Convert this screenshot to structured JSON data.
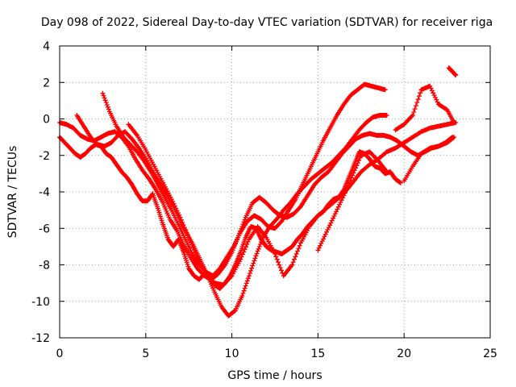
{
  "chart_data": {
    "type": "scatter",
    "title": "Day 098 of 2022, Sidereal Day-to-day VTEC variation (SDTVAR) for receiver riga",
    "xlabel": "GPS time / hours",
    "ylabel": "SDTVAR / TECUs",
    "xlim": [
      0,
      25
    ],
    "ylim": [
      -12,
      4
    ],
    "xticks": [
      0,
      5,
      10,
      15,
      20,
      25
    ],
    "yticks": [
      4,
      2,
      0,
      -2,
      -4,
      -6,
      -8,
      -10,
      -12
    ],
    "grid": true,
    "marker": "+",
    "color": "#ff0000",
    "series": [
      {
        "x": [
          0,
          0.3,
          0.6,
          0.9,
          1.2,
          1.5,
          1.8,
          2.1,
          2.4,
          2.7,
          3.0,
          3.3,
          3.6,
          3.9,
          4.2,
          4.5,
          4.8,
          5.1,
          5.4,
          5.7,
          6.0,
          6.3,
          6.6,
          6.9,
          7.2,
          7.5,
          7.8,
          8.1,
          8.4,
          8.7,
          9.0,
          9.3,
          9.6,
          9.9,
          10.2,
          10.5,
          10.8,
          11.1,
          11.4,
          11.7,
          12.0,
          12.3,
          12.6,
          12.9,
          13.2,
          13.5,
          13.8,
          14.1,
          14.4,
          14.7,
          15.0,
          15.3,
          15.6,
          15.9,
          16.2,
          16.5,
          16.8,
          17.1,
          17.4,
          17.7,
          18.0,
          18.3,
          18.6,
          18.9,
          19.2,
          19.5,
          19.8
        ],
        "y": [
          -1.0,
          -1.3,
          -1.6,
          -1.9,
          -2.1,
          -1.9,
          -1.6,
          -1.4,
          -1.5,
          -1.9,
          -2.1,
          -2.5,
          -2.9,
          -3.2,
          -3.6,
          -4.1,
          -4.5,
          -4.5,
          -4.1,
          -4.9,
          -5.8,
          -6.6,
          -7.0,
          -6.6,
          -7.3,
          -8.2,
          -8.6,
          -8.8,
          -8.5,
          -8.7,
          -9.1,
          -9.3,
          -9.0,
          -8.6,
          -8.0,
          -7.3,
          -6.5,
          -5.9,
          -6.0,
          -6.6,
          -7.0,
          -7.2,
          -7.3,
          -7.4,
          -7.2,
          -7.0,
          -6.6,
          -6.3,
          -5.9,
          -5.6,
          -5.3,
          -5.1,
          -4.7,
          -4.4,
          -4.3,
          -3.9,
          -3.2,
          -2.5,
          -1.8,
          -1.9,
          -2.2,
          -2.6,
          -2.7,
          -3.0,
          -2.9,
          -3.3,
          -3.5
        ]
      },
      {
        "x": [
          0,
          0.4,
          0.8,
          1.2,
          1.6,
          2.0,
          2.4,
          2.8,
          3.2,
          3.6,
          4.0,
          4.4,
          4.8,
          5.2,
          5.6,
          6.0,
          6.4,
          6.8,
          7.2,
          7.6,
          8.0,
          8.4,
          8.8,
          9.2,
          9.6,
          10.0,
          10.4,
          10.8,
          11.2,
          11.6,
          12.0,
          12.4,
          12.8,
          13.2,
          13.6,
          14.0,
          14.4,
          14.8,
          15.2,
          15.6,
          16.0,
          16.4,
          16.8,
          17.2,
          17.6,
          18.0,
          18.4,
          18.8,
          19.2,
          19.6,
          20.0,
          20.4,
          20.8,
          21.2,
          21.6,
          22.0,
          22.4,
          22.8
        ],
        "y": [
          -0.2,
          -0.3,
          -0.5,
          -0.9,
          -1.1,
          -1.2,
          -1.0,
          -0.8,
          -0.7,
          -1.0,
          -1.5,
          -2.2,
          -2.8,
          -3.3,
          -3.9,
          -4.6,
          -5.5,
          -6.1,
          -6.9,
          -7.6,
          -8.2,
          -8.6,
          -8.8,
          -8.5,
          -8.0,
          -7.3,
          -6.4,
          -5.4,
          -4.6,
          -4.3,
          -4.6,
          -5.0,
          -5.3,
          -5.4,
          -5.2,
          -4.8,
          -4.2,
          -3.6,
          -3.2,
          -2.9,
          -2.4,
          -1.9,
          -1.5,
          -1.1,
          -0.9,
          -0.8,
          -0.9,
          -0.9,
          -1.0,
          -1.2,
          -1.5,
          -1.8,
          -2.0,
          -1.8,
          -1.6,
          -1.5,
          -1.3,
          -1.0
        ]
      },
      {
        "x": [
          1.0,
          1.4,
          1.8,
          2.2,
          2.6,
          3.0,
          3.4,
          3.8,
          4.2,
          4.6,
          5.0,
          5.4,
          5.8,
          6.2,
          6.6,
          7.0,
          7.4,
          7.8,
          8.2,
          8.6,
          9.0,
          9.4,
          9.8,
          10.2,
          10.6,
          11.0,
          11.4,
          11.8,
          12.2,
          12.6,
          13.0,
          13.4,
          13.8,
          14.2,
          14.6,
          15.0,
          15.4,
          15.8,
          16.2,
          16.6,
          17.0,
          17.4,
          17.8,
          18.2,
          18.6,
          19.0
        ],
        "y": [
          0.2,
          -0.4,
          -1.0,
          -1.4,
          -1.5,
          -1.3,
          -0.9,
          -0.7,
          -1.1,
          -1.6,
          -2.2,
          -2.9,
          -3.5,
          -4.1,
          -4.8,
          -5.6,
          -6.3,
          -7.0,
          -7.8,
          -8.6,
          -9.5,
          -10.3,
          -10.8,
          -10.5,
          -9.7,
          -8.6,
          -7.5,
          -6.5,
          -5.9,
          -5.5,
          -5.0,
          -4.6,
          -4.1,
          -3.7,
          -3.3,
          -3.0,
          -2.7,
          -2.4,
          -2.0,
          -1.6,
          -1.1,
          -0.6,
          -0.2,
          0.1,
          0.2,
          0.2
        ]
      },
      {
        "x": [
          2.5,
          2.9,
          3.3,
          3.7,
          4.1,
          4.5,
          4.9,
          5.3,
          5.7,
          6.1,
          6.5,
          6.9,
          7.3,
          7.7,
          8.1,
          8.5,
          8.9,
          9.3,
          9.7,
          10.1,
          10.5,
          10.9,
          11.3,
          11.7,
          12.1,
          12.5,
          12.9,
          13.3,
          13.7,
          14.1,
          14.5,
          14.9,
          15.3,
          15.7,
          16.1,
          16.5,
          16.9,
          17.3,
          17.7,
          18.1,
          18.5,
          18.9
        ],
        "y": [
          1.4,
          0.4,
          -0.4,
          -1.0,
          -1.4,
          -1.8,
          -2.3,
          -2.9,
          -3.6,
          -4.3,
          -5.0,
          -5.8,
          -6.6,
          -7.4,
          -8.0,
          -8.4,
          -8.6,
          -8.2,
          -7.6,
          -7.0,
          -6.2,
          -5.6,
          -5.3,
          -5.5,
          -5.9,
          -6.0,
          -5.6,
          -5.0,
          -4.4,
          -3.6,
          -2.8,
          -2.0,
          -1.2,
          -0.5,
          0.2,
          0.8,
          1.3,
          1.6,
          1.9,
          1.8,
          1.7,
          1.6
        ]
      },
      {
        "x": [
          4.0,
          4.5,
          5.0,
          5.5,
          6.0,
          6.5,
          7.0,
          7.5,
          8.0,
          8.5,
          9.0,
          9.5,
          10.0,
          10.5,
          11.0,
          11.5,
          12.0,
          12.5,
          13.0,
          13.5,
          14.0,
          14.5,
          15.0,
          15.5,
          16.0,
          16.5,
          17.0,
          17.5,
          18.0,
          18.5,
          19.0,
          19.5,
          20.0,
          20.5,
          21.0,
          21.5,
          22.0,
          22.5,
          23.0
        ],
        "y": [
          -0.3,
          -0.9,
          -1.7,
          -2.6,
          -3.5,
          -4.4,
          -5.4,
          -6.5,
          -7.6,
          -8.5,
          -9.0,
          -9.1,
          -8.6,
          -7.7,
          -6.6,
          -5.9,
          -6.5,
          -7.4,
          -8.6,
          -8.0,
          -6.8,
          -5.9,
          -5.3,
          -4.9,
          -4.5,
          -4.1,
          -3.5,
          -2.9,
          -2.5,
          -2.2,
          -1.8,
          -1.6,
          -1.3,
          -1.0,
          -0.7,
          -0.5,
          -0.4,
          -0.3,
          -0.2
        ]
      },
      {
        "x": [
          15.0,
          15.5,
          16.0,
          16.5,
          17.0,
          17.5,
          18.0,
          18.5,
          19.0
        ],
        "y": [
          -7.2,
          -6.2,
          -5.2,
          -4.2,
          -3.1,
          -2.0,
          -1.8,
          -2.3,
          -2.9
        ]
      },
      {
        "x": [
          20.0,
          20.5,
          21.0,
          21.5,
          22.0,
          22.5,
          22.9
        ],
        "y": [
          -3.4,
          -2.6,
          -1.9,
          -1.6,
          -1.5,
          -1.3,
          -1.0
        ]
      },
      {
        "x": [
          19.5,
          20.0,
          20.5,
          21.0,
          21.5,
          22.0,
          22.5,
          22.9
        ],
        "y": [
          -0.6,
          -0.3,
          0.2,
          1.6,
          1.8,
          0.8,
          0.5,
          -0.2
        ]
      },
      {
        "x": [
          22.6,
          22.8,
          23.0
        ],
        "y": [
          2.8,
          2.6,
          2.4
        ]
      }
    ]
  }
}
